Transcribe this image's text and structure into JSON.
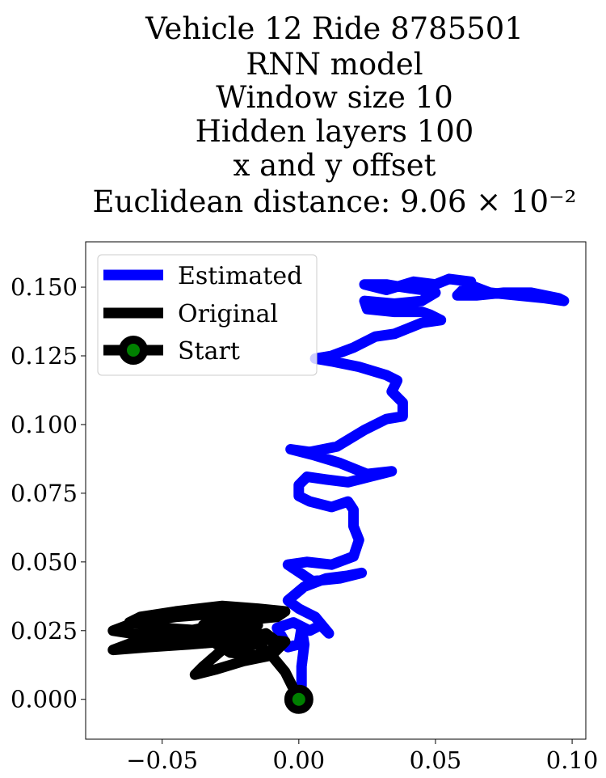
{
  "chart_data": {
    "type": "line",
    "title_lines": [
      "Vehicle 12 Ride 8785501",
      "RNN model",
      "Window size 10",
      "Hidden layers 100",
      "x and y offset",
      "Euclidean distance: 9.06 × 10⁻²"
    ],
    "xlabel": "",
    "ylabel": "",
    "xlim": [
      -0.078,
      0.105
    ],
    "ylim": [
      -0.0145,
      0.1665
    ],
    "x_ticks": [
      -0.05,
      0.0,
      0.05,
      0.1
    ],
    "x_tick_labels": [
      "−0.05",
      "0.00",
      "0.05",
      "0.10"
    ],
    "y_ticks": [
      0.0,
      0.025,
      0.05,
      0.075,
      0.1,
      0.125,
      0.15
    ],
    "y_tick_labels": [
      "0.000",
      "0.025",
      "0.050",
      "0.075",
      "0.100",
      "0.125",
      "0.150"
    ],
    "grid": false,
    "legend": {
      "placement": "top-left",
      "entries": [
        "Estimated",
        "Original",
        "Start"
      ]
    },
    "colors": {
      "estimated": "#0000ff",
      "original": "#000000",
      "start_marker_edge": "#000000",
      "start_marker_face": "#008000"
    },
    "series": [
      {
        "name": "Estimated",
        "x": [
          0.0,
          0.001,
          0.001,
          0.002,
          0.001,
          0.0,
          -0.004,
          -0.008,
          -0.002,
          0.004,
          0.008,
          0.011,
          0.006,
          0.0,
          -0.004,
          0.002,
          0.01,
          0.018,
          0.023,
          0.015,
          0.005,
          -0.004,
          0.003,
          0.012,
          0.02,
          0.022,
          0.02,
          0.02,
          0.018,
          0.012,
          0.004,
          0.0,
          0.0,
          0.003,
          0.01,
          0.018,
          0.026,
          0.03,
          0.034,
          0.025,
          0.015,
          0.005,
          -0.003,
          0.004,
          0.014,
          0.024,
          0.032,
          0.038,
          0.038,
          0.034,
          0.036,
          0.032,
          0.022,
          0.012,
          0.006,
          0.012,
          0.02,
          0.028,
          0.035,
          0.04,
          0.045,
          0.052,
          0.048,
          0.045,
          0.035,
          0.025,
          0.024,
          0.035,
          0.045,
          0.05,
          0.045,
          0.038,
          0.032,
          0.024,
          0.032,
          0.042,
          0.05,
          0.055,
          0.063,
          0.06,
          0.058,
          0.065,
          0.075,
          0.085,
          0.095,
          0.097,
          0.09,
          0.08,
          0.07,
          0.062
        ],
        "y": [
          0.0,
          0.005,
          0.012,
          0.02,
          0.026,
          0.02,
          0.019,
          0.026,
          0.028,
          0.025,
          0.027,
          0.024,
          0.03,
          0.033,
          0.036,
          0.041,
          0.044,
          0.045,
          0.046,
          0.044,
          0.043,
          0.049,
          0.05,
          0.049,
          0.052,
          0.058,
          0.063,
          0.069,
          0.072,
          0.07,
          0.072,
          0.074,
          0.078,
          0.081,
          0.08,
          0.079,
          0.081,
          0.082,
          0.083,
          0.082,
          0.086,
          0.089,
          0.091,
          0.09,
          0.092,
          0.098,
          0.102,
          0.103,
          0.108,
          0.112,
          0.116,
          0.118,
          0.121,
          0.123,
          0.124,
          0.125,
          0.128,
          0.132,
          0.133,
          0.135,
          0.137,
          0.138,
          0.14,
          0.141,
          0.141,
          0.142,
          0.145,
          0.144,
          0.145,
          0.148,
          0.149,
          0.15,
          0.151,
          0.151,
          0.149,
          0.152,
          0.151,
          0.153,
          0.152,
          0.149,
          0.147,
          0.147,
          0.148,
          0.148,
          0.146,
          0.145,
          0.146,
          0.147,
          0.148,
          0.151
        ]
      },
      {
        "name": "Original",
        "x": [
          0.0,
          -0.005,
          -0.01,
          -0.015,
          -0.02,
          -0.028,
          -0.035,
          -0.038,
          -0.03,
          -0.02,
          -0.01,
          -0.005,
          -0.015,
          -0.028,
          -0.04,
          -0.055,
          -0.068,
          -0.06,
          -0.045,
          -0.03,
          -0.018,
          -0.008,
          -0.005,
          -0.015,
          -0.028,
          -0.045,
          -0.058,
          -0.062,
          -0.05,
          -0.035,
          -0.022,
          -0.015,
          -0.02,
          -0.032,
          -0.045,
          -0.06,
          -0.068,
          -0.055,
          -0.04,
          -0.028,
          -0.02,
          -0.018,
          -0.025,
          -0.035,
          -0.03,
          -0.02,
          -0.015,
          -0.02,
          -0.03,
          -0.025,
          -0.015,
          -0.01,
          -0.008,
          -0.012,
          -0.02,
          -0.018
        ],
        "y": [
          0.0,
          0.01,
          0.016,
          0.02,
          0.02,
          0.018,
          0.012,
          0.009,
          0.011,
          0.014,
          0.016,
          0.021,
          0.022,
          0.021,
          0.02,
          0.019,
          0.018,
          0.021,
          0.024,
          0.027,
          0.029,
          0.03,
          0.032,
          0.033,
          0.034,
          0.032,
          0.03,
          0.028,
          0.026,
          0.025,
          0.024,
          0.027,
          0.03,
          0.031,
          0.03,
          0.028,
          0.025,
          0.023,
          0.022,
          0.021,
          0.019,
          0.022,
          0.025,
          0.027,
          0.029,
          0.031,
          0.033,
          0.026,
          0.02,
          0.017,
          0.016,
          0.018,
          0.021,
          0.024,
          0.022,
          0.02
        ]
      }
    ],
    "start_point": {
      "name": "Start",
      "x": 0.0,
      "y": 0.0
    }
  }
}
